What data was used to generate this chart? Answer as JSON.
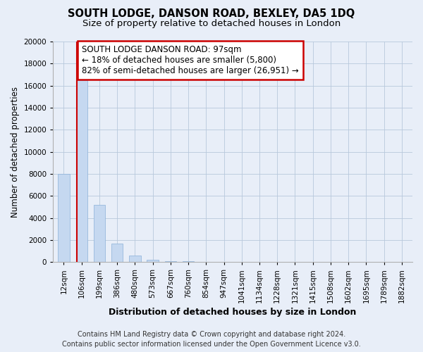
{
  "title": "SOUTH LODGE, DANSON ROAD, BEXLEY, DA5 1DQ",
  "subtitle": "Size of property relative to detached houses in London",
  "xlabel": "Distribution of detached houses by size in London",
  "ylabel": "Number of detached properties",
  "categories": [
    "12sqm",
    "106sqm",
    "199sqm",
    "386sqm",
    "480sqm",
    "573sqm",
    "667sqm",
    "760sqm",
    "854sqm",
    "947sqm",
    "1041sqm",
    "1134sqm",
    "1228sqm",
    "1321sqm",
    "1415sqm",
    "1508sqm",
    "1602sqm",
    "1695sqm",
    "1789sqm",
    "1882sqm"
  ],
  "values": [
    8000,
    16500,
    5200,
    1700,
    600,
    200,
    100,
    50,
    30,
    15,
    10,
    8,
    5,
    4,
    3,
    2,
    2,
    1,
    1,
    1
  ],
  "bar_color": "#c5d8f0",
  "vline_x": 0.72,
  "vline_color": "#cc0000",
  "annotation_line1": "SOUTH LODGE DANSON ROAD: 97sqm",
  "annotation_line2": "← 18% of detached houses are smaller (5,800)",
  "annotation_line3": "82% of semi-detached houses are larger (26,951) →",
  "annotation_box_color": "#ffffff",
  "annotation_box_edge_color": "#cc0000",
  "ylim": [
    0,
    20000
  ],
  "yticks": [
    0,
    2000,
    4000,
    6000,
    8000,
    10000,
    12000,
    14000,
    16000,
    18000,
    20000
  ],
  "footer_line1": "Contains HM Land Registry data © Crown copyright and database right 2024.",
  "footer_line2": "Contains public sector information licensed under the Open Government Licence v3.0.",
  "bg_color": "#e8eef8",
  "plot_bg_color": "#e8eef8",
  "title_fontsize": 10.5,
  "subtitle_fontsize": 9.5,
  "ylabel_fontsize": 8.5,
  "xlabel_fontsize": 9,
  "tick_fontsize": 7.5,
  "annotation_fontsize": 8.5,
  "footer_fontsize": 7
}
